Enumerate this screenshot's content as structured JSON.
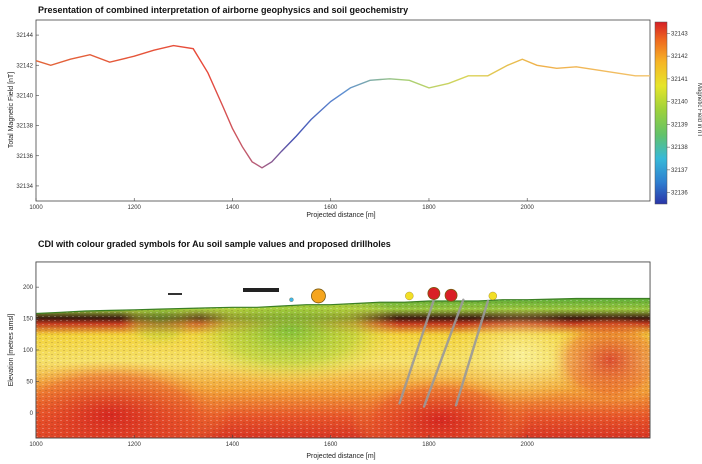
{
  "chart_data": [
    {
      "type": "line",
      "title": "Presentation of combined interpretation of airborne geophysics and soil geochemistry",
      "xlabel": "Projected distance [m]",
      "ylabel": "Total Magnetic Field [nT]",
      "xlim": [
        1000,
        2250
      ],
      "ylim": [
        32133,
        32145
      ],
      "x_ticks": [
        1000,
        1200,
        1400,
        1600,
        1800,
        2000
      ],
      "y_ticks": [
        32134,
        32136,
        32138,
        32140,
        32142,
        32144
      ],
      "grid": false,
      "series": [
        {
          "x": [
            1000,
            1030,
            1070,
            1110,
            1150,
            1200,
            1240,
            1280,
            1320,
            1350,
            1380,
            1400,
            1420,
            1440,
            1460,
            1480,
            1500,
            1530,
            1560,
            1600,
            1640,
            1680,
            1720,
            1760,
            1800,
            1840,
            1880,
            1920,
            1960,
            1990,
            2020,
            2060,
            2100,
            2140,
            2180,
            2220,
            2250
          ],
          "values": [
            32142.3,
            32142.0,
            32142.4,
            32142.7,
            32142.2,
            32142.6,
            32143.0,
            32143.3,
            32143.1,
            32141.5,
            32139.3,
            32137.8,
            32136.6,
            32135.6,
            32135.2,
            32135.6,
            32136.3,
            32137.3,
            32138.4,
            32139.6,
            32140.5,
            32141.0,
            32141.1,
            32141.0,
            32140.5,
            32140.8,
            32141.3,
            32141.3,
            32142.0,
            32142.4,
            32142.0,
            32141.8,
            32141.9,
            32141.7,
            32141.5,
            32141.3,
            32141.3
          ]
        }
      ],
      "colorbar": {
        "label": "Magnetic Field in nT",
        "ticks": [
          32136,
          32137,
          32138,
          32139,
          32140,
          32141,
          32142,
          32143
        ],
        "range": [
          32135.5,
          32143.5
        ],
        "colors": [
          "#2a35a8",
          "#2f7fd0",
          "#37b9d8",
          "#62c26a",
          "#9fd23a",
          "#e6e52a",
          "#f6b526",
          "#ef6a1f",
          "#d51f26"
        ]
      }
    },
    {
      "type": "heatmap",
      "title": "CDI with colour graded symbols for Au soil sample values and proposed drillholes",
      "xlabel": "Projected distance [m]",
      "ylabel": "Elevation [metres amsl]",
      "xlim": [
        1000,
        2250
      ],
      "ylim": [
        -40,
        240
      ],
      "x_ticks": [
        1000,
        1200,
        1400,
        1600,
        1800,
        2000
      ],
      "y_ticks": [
        0,
        50,
        100,
        150,
        200
      ],
      "surface": {
        "x": [
          1000,
          1050,
          1100,
          1150,
          1200,
          1250,
          1300,
          1350,
          1400,
          1450,
          1500,
          1550,
          1600,
          1650,
          1700,
          1750,
          1800,
          1850,
          1900,
          1950,
          2000,
          2050,
          2100,
          2150,
          2200,
          2250
        ],
        "elevation": [
          158,
          160,
          162,
          163,
          164,
          165,
          166,
          167,
          168,
          168,
          170,
          172,
          172,
          174,
          176,
          176,
          178,
          178,
          178,
          180,
          180,
          181,
          182,
          182,
          182,
          182
        ]
      },
      "au_samples": [
        {
          "x": 1520,
          "y": 180,
          "size": 2,
          "color": "#3fb6ea"
        },
        {
          "x": 1575,
          "y": 186,
          "size": 7,
          "color": "#f5a51e"
        },
        {
          "x": 1760,
          "y": 186,
          "size": 4,
          "color": "#f2df26"
        },
        {
          "x": 1810,
          "y": 190,
          "size": 6,
          "color": "#d91f26"
        },
        {
          "x": 1845,
          "y": 187,
          "size": 6,
          "color": "#d91f26"
        },
        {
          "x": 1930,
          "y": 186,
          "size": 4,
          "color": "#f2df26"
        }
      ],
      "drillholes": [
        {
          "x0": 1810,
          "y0": 180,
          "x1": 1740,
          "y1": 15
        },
        {
          "x0": 1870,
          "y0": 180,
          "x1": 1790,
          "y1": 10
        },
        {
          "x0": 1920,
          "y0": 178,
          "x1": 1855,
          "y1": 12
        }
      ],
      "colors": [
        "#f0e830",
        "#7ec238",
        "#f6c42c",
        "#ef6a20",
        "#d51f26"
      ]
    }
  ]
}
